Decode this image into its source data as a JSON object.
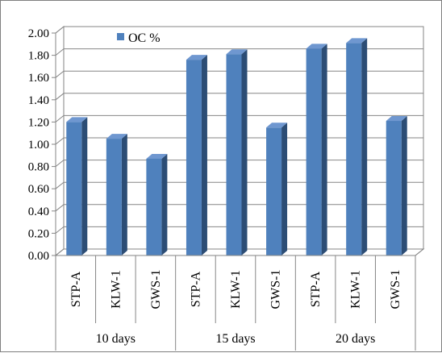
{
  "chart_data": {
    "type": "bar",
    "title": "",
    "xlabel": "",
    "ylabel": "",
    "ylim": [
      0,
      2.0
    ],
    "y_tick_step": 0.2,
    "y_tick_labels": [
      "0.00",
      "0.20",
      "0.40",
      "0.60",
      "0.80",
      "1.00",
      "1.20",
      "1.40",
      "1.60",
      "1.80",
      "2.00"
    ],
    "grid": true,
    "three_d": true,
    "legend": {
      "position": "top-left",
      "entries": [
        "OC %"
      ]
    },
    "groups": [
      {
        "label": "10 days",
        "categories": [
          "STP-A",
          "KLW-1",
          "GWS-1"
        ]
      },
      {
        "label": "15 days",
        "categories": [
          "STP-A",
          "KLW-1",
          "GWS-1"
        ]
      },
      {
        "label": "20 days",
        "categories": [
          "STP-A",
          "KLW-1",
          "GWS-1"
        ]
      }
    ],
    "categories": [
      "STP-A",
      "KLW-1",
      "GWS-1",
      "STP-A",
      "KLW-1",
      "GWS-1",
      "STP-A",
      "KLW-1",
      "GWS-1"
    ],
    "series": [
      {
        "name": "OC %",
        "color": "#4f81bd",
        "values": [
          1.2,
          1.05,
          0.87,
          1.76,
          1.81,
          1.15,
          1.86,
          1.91,
          1.21
        ]
      }
    ]
  }
}
